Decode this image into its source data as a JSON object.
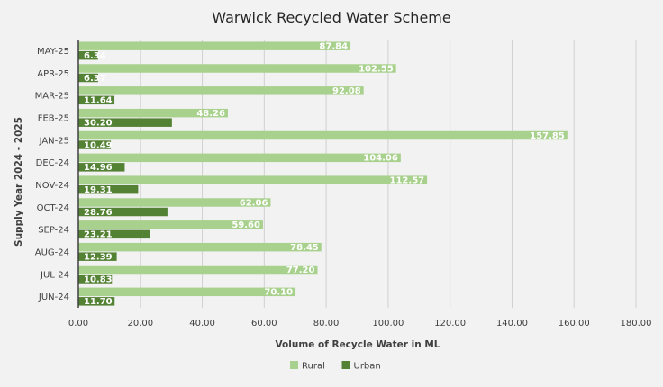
{
  "chart_data": {
    "type": "bar",
    "orientation": "horizontal",
    "title": "Warwick Recycled Water Scheme",
    "xlabel": "Volume of Recycle Water in ML",
    "ylabel": "Supply Year 2024 - 2025",
    "categories": [
      "JUN-24",
      "JUL-24",
      "AUG-24",
      "SEP-24",
      "OCT-24",
      "NOV-24",
      "DEC-24",
      "JAN-25",
      "FEB-25",
      "MAR-25",
      "APR-25",
      "MAY-25"
    ],
    "series": [
      {
        "name": "Rural",
        "color": "#a9d18e",
        "values": [
          70.1,
          77.2,
          78.45,
          59.6,
          62.06,
          112.57,
          104.06,
          157.85,
          48.26,
          92.08,
          102.55,
          87.84
        ]
      },
      {
        "name": "Urban",
        "color": "#548235",
        "values": [
          11.7,
          10.83,
          12.39,
          23.21,
          28.76,
          19.31,
          14.96,
          10.49,
          30.2,
          11.64,
          6.37,
          6.34
        ]
      }
    ],
    "xlim": [
      0,
      180
    ],
    "xticks": [
      "0.00",
      "20.00",
      "40.00",
      "60.00",
      "80.00",
      "100.00",
      "120.00",
      "140.00",
      "160.00",
      "180.00"
    ],
    "xtick_step": 20,
    "grid": "vertical",
    "legend_position": "bottom",
    "data_label_decimals": 2
  }
}
